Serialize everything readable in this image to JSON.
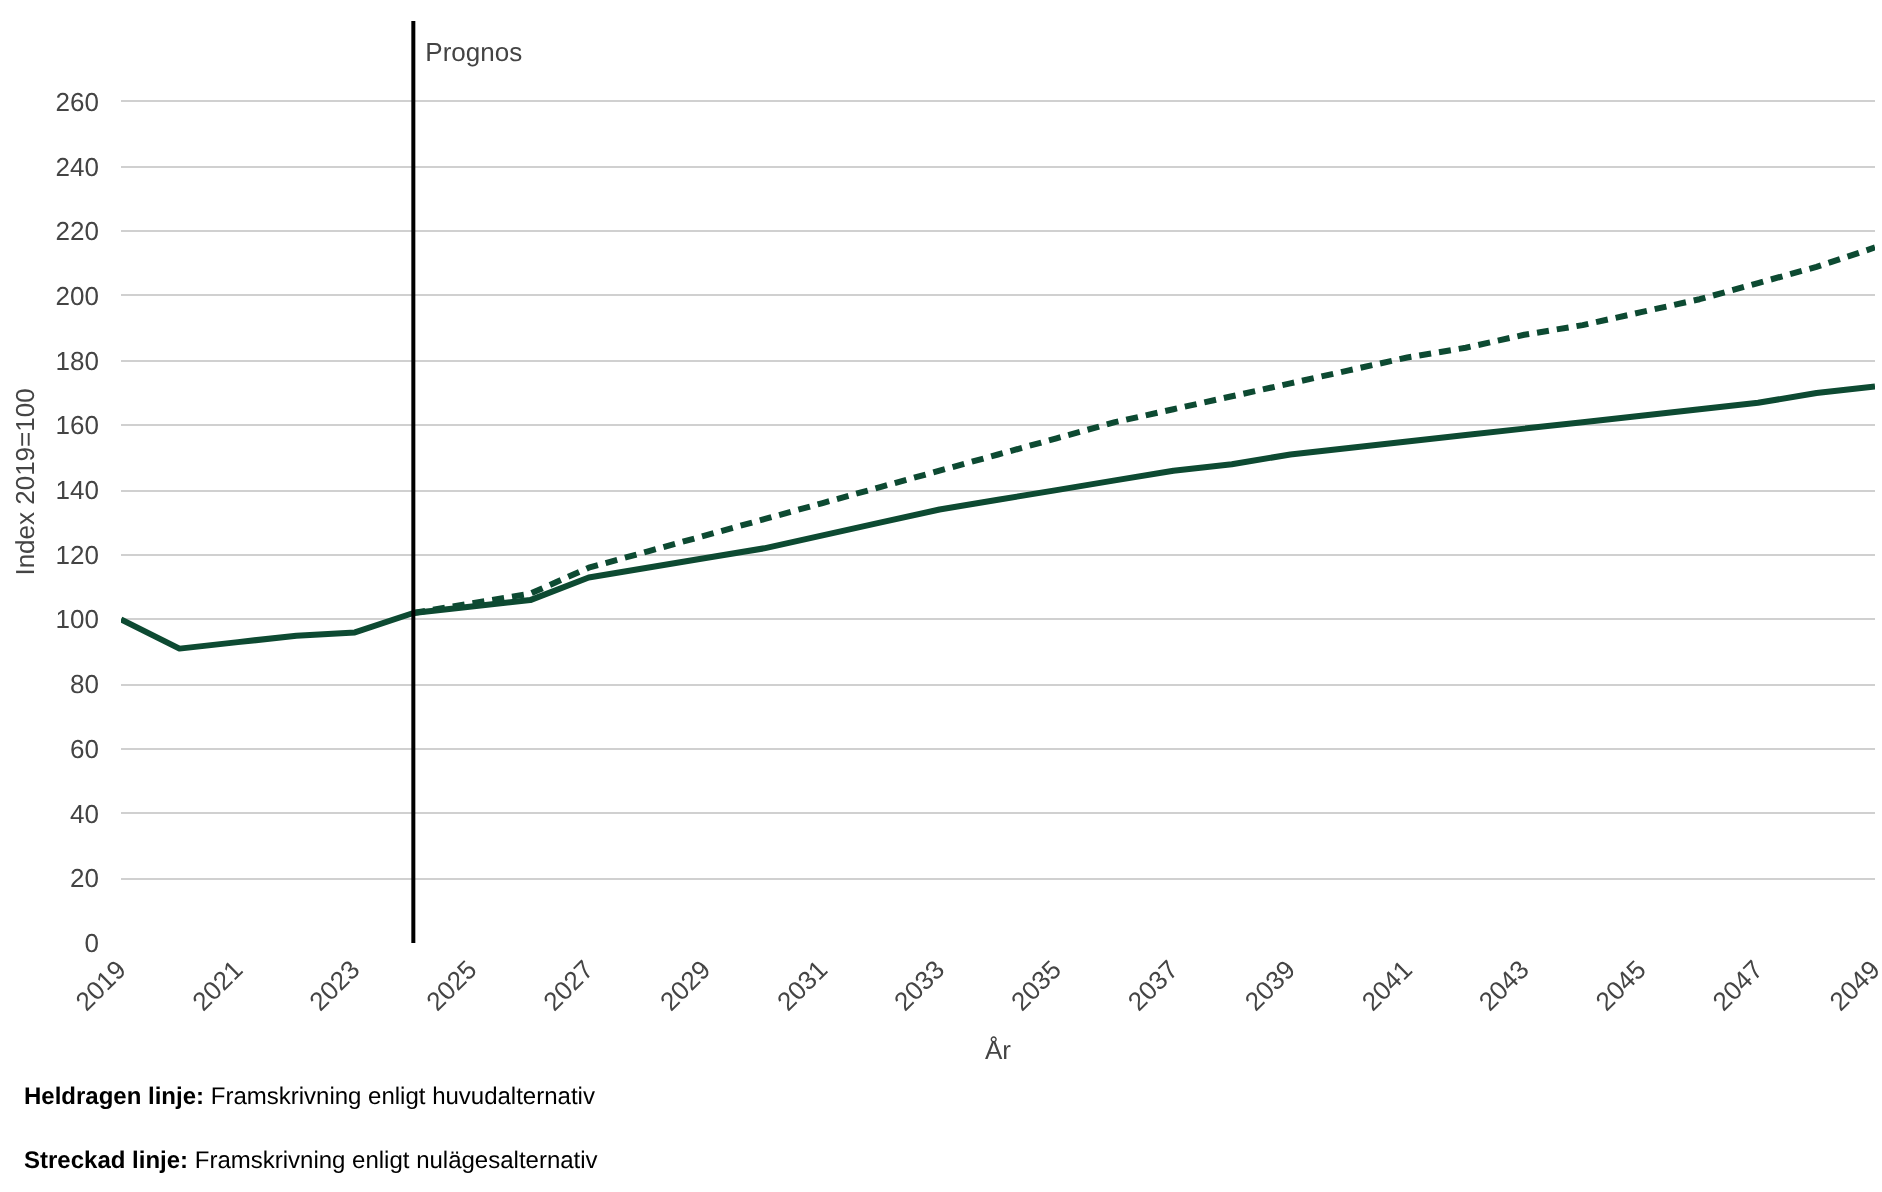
{
  "chart_data": {
    "type": "line",
    "xlabel": "År",
    "ylabel": "Index 2019=100",
    "x": [
      2019,
      2020,
      2021,
      2022,
      2023,
      2024,
      2025,
      2026,
      2027,
      2028,
      2029,
      2030,
      2031,
      2032,
      2033,
      2034,
      2035,
      2036,
      2037,
      2038,
      2039,
      2040,
      2041,
      2042,
      2043,
      2044,
      2045,
      2046,
      2047,
      2048,
      2049
    ],
    "series": [
      {
        "color": "#0d4a32",
        "line_style": "solid",
        "values": [
          100,
          91,
          93,
          95,
          96,
          102,
          104,
          106,
          113,
          116,
          119,
          122,
          126,
          130,
          134,
          137,
          140,
          143,
          146,
          148,
          151,
          153,
          155,
          157,
          159,
          161,
          163,
          165,
          167,
          170,
          172
        ]
      },
      {
        "color": "#0d4a32",
        "line_style": "dashed",
        "values": [
          null,
          null,
          null,
          null,
          null,
          102,
          105,
          108,
          116,
          121,
          126,
          131,
          136,
          141,
          146,
          151,
          156,
          161,
          165,
          169,
          173,
          177,
          181,
          184,
          188,
          191,
          195,
          199,
          204,
          209,
          215
        ]
      }
    ],
    "xlim": [
      2019,
      2049
    ],
    "ylim": [
      0,
      285
    ],
    "xticks": [
      2019,
      2021,
      2023,
      2025,
      2027,
      2029,
      2031,
      2033,
      2035,
      2037,
      2039,
      2041,
      2043,
      2045,
      2047,
      2049
    ],
    "yticks": [
      0,
      20,
      40,
      60,
      80,
      100,
      120,
      140,
      160,
      180,
      200,
      220,
      240,
      260
    ],
    "grid": "y",
    "marker": "none",
    "ref_lines": [
      {
        "axis": "x",
        "value": 2024,
        "label": "Prognos",
        "color": "#000000"
      }
    ],
    "annotations": [
      "Heldragen linje: Framskrivning enligt huvudalternativ",
      "Streckad linje: Framskrivning enligt nulägesalternativ"
    ]
  }
}
